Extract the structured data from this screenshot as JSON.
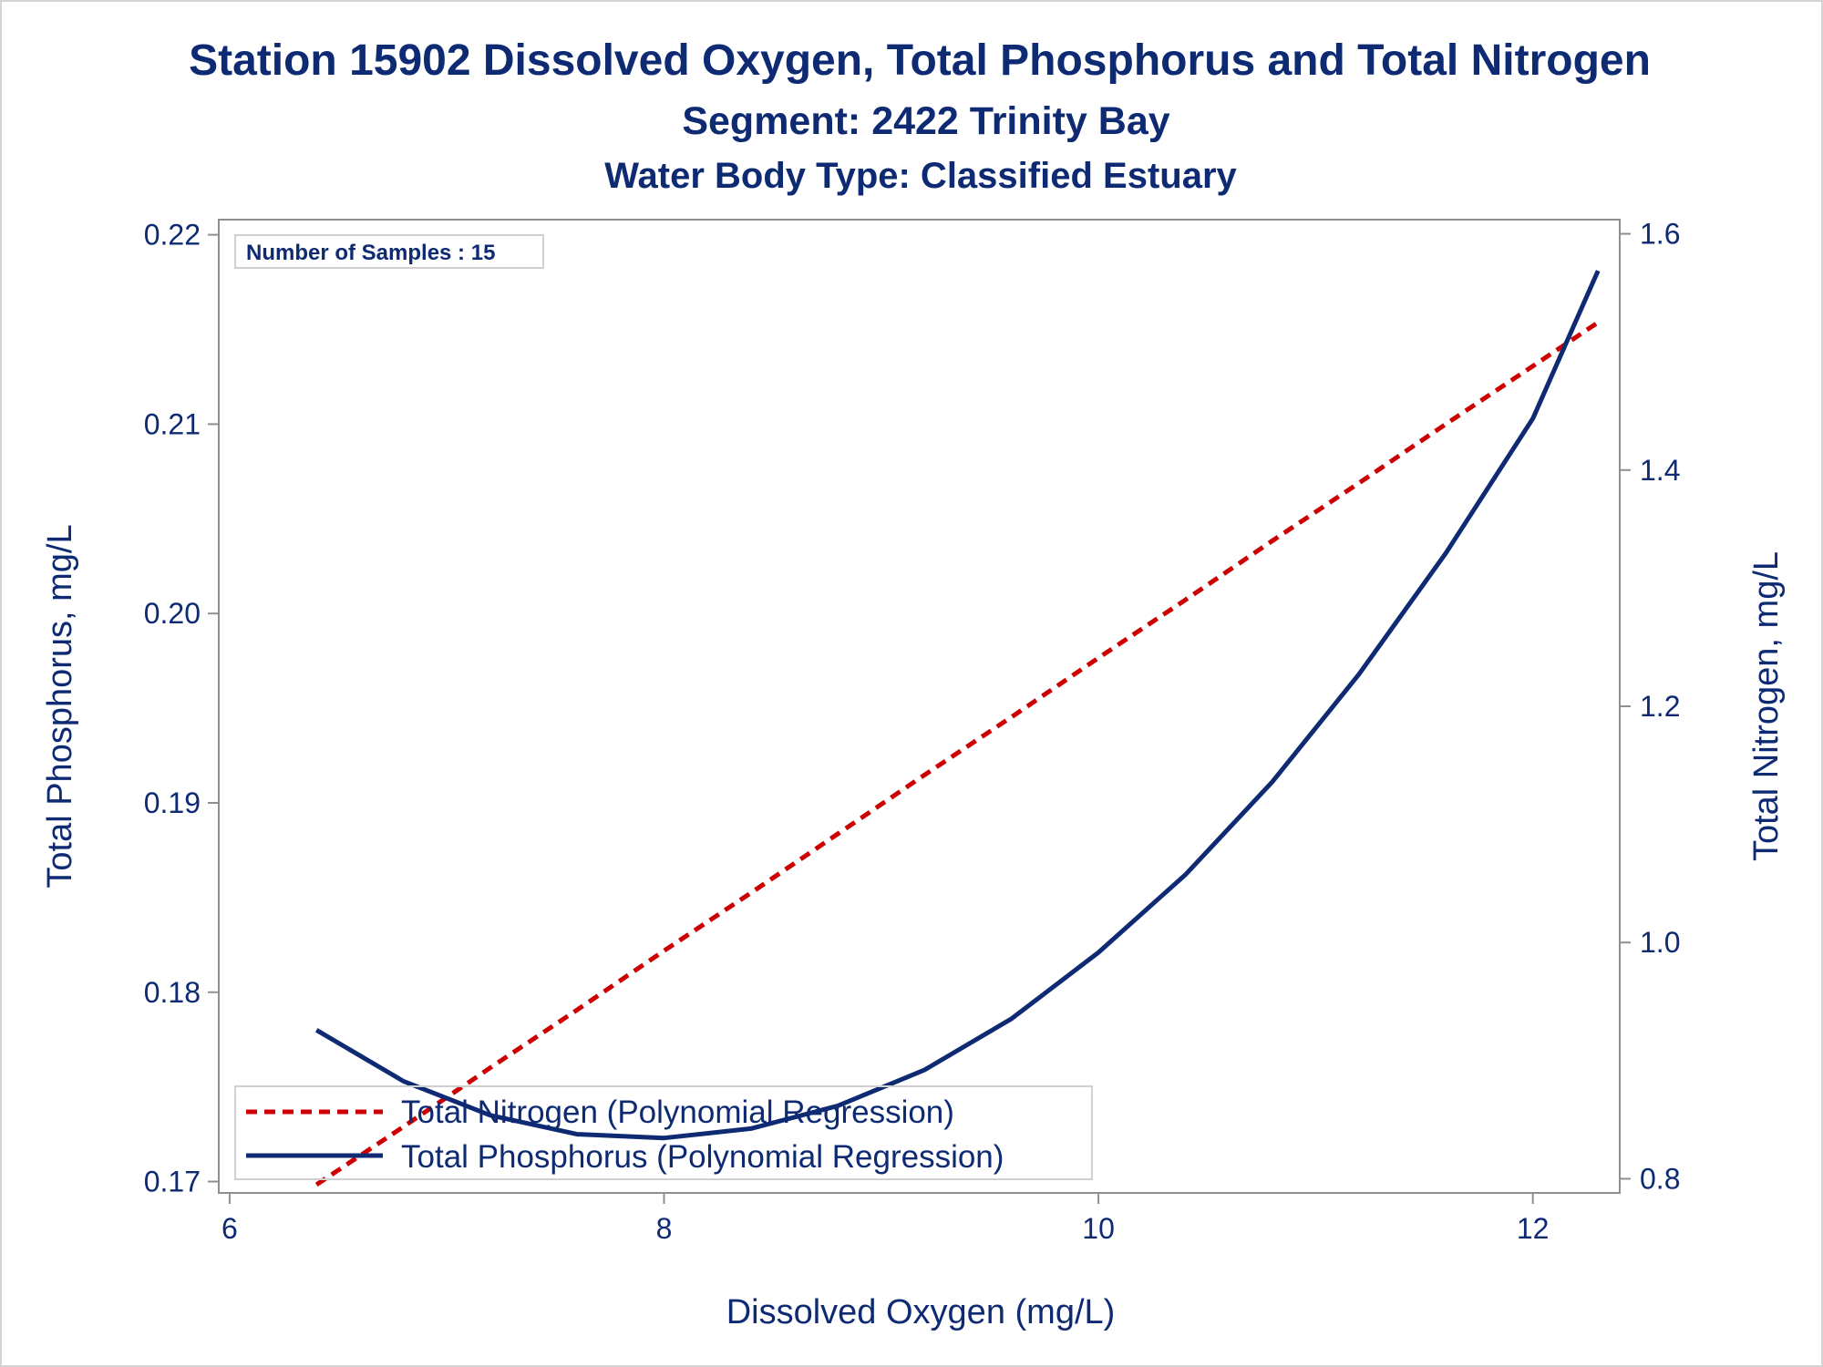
{
  "titles": {
    "line1": "Station 15902  Dissolved Oxygen, Total Phosphorus and Total Nitrogen",
    "line2": "Segment: 2422  Trinity Bay",
    "line3": "Water Body Type: Classified Estuary"
  },
  "inset_text": "Number of Samples : 15",
  "colors": {
    "text": "#0d2a73",
    "phosphorus": "#0d2a73",
    "nitrogen": "#cc0000",
    "axis": "#8f8f8f",
    "frame": "#d4d4d4"
  },
  "chart_data": {
    "type": "line",
    "title": "Station 15902  Dissolved Oxygen, Total Phosphorus and Total Nitrogen",
    "xlabel": "Dissolved Oxygen (mg/L)",
    "ylabel": "Total Phosphorus, mg/L",
    "y2label": "Total Nitrogen, mg/L",
    "xlim": [
      5.95,
      12.4
    ],
    "ylim": [
      0.1694,
      0.2208
    ],
    "y2lim": [
      0.788,
      1.612
    ],
    "x_ticks": [
      6,
      8,
      10,
      12
    ],
    "x_tick_labels": [
      "6",
      "8",
      "10",
      "12"
    ],
    "y_ticks": [
      0.17,
      0.18,
      0.19,
      0.2,
      0.21,
      0.22
    ],
    "y_tick_labels": [
      "0.17",
      "0.18",
      "0.19",
      "0.20",
      "0.21",
      "0.22"
    ],
    "y2_ticks": [
      0.8,
      1.0,
      1.2,
      1.4,
      1.6
    ],
    "y2_tick_labels": [
      "0.8",
      "1.0",
      "1.2",
      "1.4",
      "1.6"
    ],
    "grid": false,
    "legend_position": "bottom-left",
    "series": [
      {
        "name": "Total Nitrogen (Polynomial Regression)",
        "axis": "right",
        "style": "dashed",
        "color": "#cc0000",
        "x": [
          6.4,
          6.8,
          7.2,
          7.6,
          8.0,
          8.4,
          8.8,
          9.2,
          9.6,
          10.0,
          10.4,
          10.8,
          11.2,
          11.6,
          12.0,
          12.3
        ],
        "y": [
          0.795,
          0.844,
          0.894,
          0.943,
          0.993,
          1.042,
          1.092,
          1.142,
          1.191,
          1.241,
          1.29,
          1.34,
          1.389,
          1.439,
          1.488,
          1.525
        ]
      },
      {
        "name": "Total Phosphorus (Polynomial Regression)",
        "axis": "left",
        "style": "solid",
        "color": "#0d2a73",
        "x": [
          6.4,
          6.8,
          7.2,
          7.6,
          8.0,
          8.4,
          8.8,
          9.2,
          9.6,
          10.0,
          10.4,
          10.8,
          11.2,
          11.6,
          12.0,
          12.3
        ],
        "y": [
          0.178,
          0.1753,
          0.1735,
          0.1725,
          0.1723,
          0.1728,
          0.174,
          0.1759,
          0.1786,
          0.1821,
          0.1862,
          0.1911,
          0.1968,
          0.2032,
          0.2103,
          0.2181
        ]
      }
    ]
  }
}
